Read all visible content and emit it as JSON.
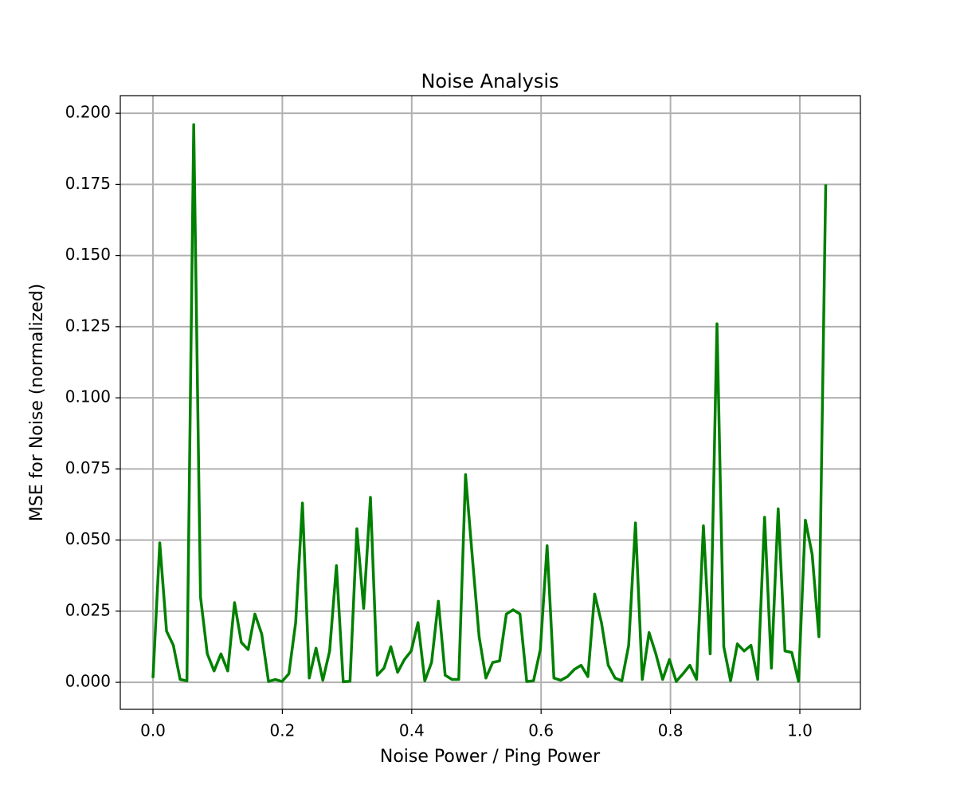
{
  "chart_data": {
    "type": "line",
    "title": "Noise Analysis",
    "x_label": "Noise Power / Ping Power",
    "y_label": "MSE for Noise (normalized)",
    "color": "#008000",
    "grid": true,
    "x": [
      0,
      0.0105,
      0.021,
      0.0315,
      0.042,
      0.0525,
      0.063,
      0.0735,
      0.084,
      0.0945,
      0.1051,
      0.1156,
      0.1261,
      0.1366,
      0.1471,
      0.1576,
      0.1681,
      0.1786,
      0.1891,
      0.1996,
      0.2101,
      0.2206,
      0.2311,
      0.2416,
      0.2521,
      0.2626,
      0.2731,
      0.2836,
      0.2941,
      0.3046,
      0.3152,
      0.3257,
      0.3362,
      0.3467,
      0.3572,
      0.3677,
      0.3782,
      0.3887,
      0.3992,
      0.4097,
      0.4202,
      0.4307,
      0.4412,
      0.4517,
      0.4622,
      0.4727,
      0.4832,
      0.4937,
      0.5042,
      0.5147,
      0.5253,
      0.5358,
      0.5463,
      0.5568,
      0.5673,
      0.5778,
      0.5883,
      0.5988,
      0.6093,
      0.6198,
      0.6303,
      0.6408,
      0.6513,
      0.6618,
      0.6723,
      0.6828,
      0.6933,
      0.7038,
      0.7143,
      0.7248,
      0.7354,
      0.7459,
      0.7564,
      0.7669,
      0.7774,
      0.7879,
      0.7984,
      0.8089,
      0.8194,
      0.8299,
      0.8404,
      0.8509,
      0.8614,
      0.8719,
      0.8824,
      0.8929,
      0.9034,
      0.9139,
      0.9244,
      0.9349,
      0.9455,
      0.956,
      0.9665,
      0.977,
      0.9875,
      0.998,
      1.0085,
      1.019,
      1.0295,
      1.04
    ],
    "values": [
      0.0015,
      0.049,
      0.018,
      0.013,
      0.001,
      0.0005,
      0.196,
      0.03,
      0.01,
      0.004,
      0.01,
      0.004,
      0.028,
      0.014,
      0.0115,
      0.024,
      0.017,
      0.0003,
      0.001,
      0.0003,
      0.003,
      0.021,
      0.063,
      0.0015,
      0.012,
      0.0007,
      0.011,
      0.041,
      0.0002,
      0.0004,
      0.054,
      0.026,
      0.065,
      0.0025,
      0.005,
      0.0125,
      0.0035,
      0.008,
      0.011,
      0.021,
      0.0005,
      0.007,
      0.0285,
      0.0025,
      0.001,
      0.001,
      0.073,
      0.044,
      0.016,
      0.0015,
      0.007,
      0.0075,
      0.024,
      0.0255,
      0.024,
      0.0003,
      0.0005,
      0.0115,
      0.048,
      0.0015,
      0.0007,
      0.002,
      0.0045,
      0.006,
      0.002,
      0.031,
      0.021,
      0.006,
      0.0015,
      0.0005,
      0.013,
      0.056,
      0.001,
      0.0175,
      0.01,
      0.001,
      0.008,
      0.0003,
      0.003,
      0.006,
      0.001,
      0.055,
      0.01,
      0.126,
      0.0125,
      0.0005,
      0.0135,
      0.011,
      0.013,
      0.001,
      0.058,
      0.005,
      0.061,
      0.011,
      0.0105,
      0.0003,
      0.057,
      0.045,
      0.016,
      0.175
    ],
    "xlim": [
      -0.0505,
      1.0936
    ],
    "ylim": [
      -0.0095,
      0.2062
    ],
    "xticks": [
      {
        "value": 0,
        "label": "0.0"
      },
      {
        "value": 0.2,
        "label": "0.2"
      },
      {
        "value": 0.4,
        "label": "0.4"
      },
      {
        "value": 0.6,
        "label": "0.6"
      },
      {
        "value": 0.8,
        "label": "0.8"
      },
      {
        "value": 1.0,
        "label": "1.0"
      }
    ],
    "yticks": [
      {
        "value": 0,
        "label": "0.000"
      },
      {
        "value": 0.025,
        "label": "0.025"
      },
      {
        "value": 0.05,
        "label": "0.050"
      },
      {
        "value": 0.075,
        "label": "0.075"
      },
      {
        "value": 0.1,
        "label": "0.100"
      },
      {
        "value": 0.125,
        "label": "0.125"
      },
      {
        "value": 0.15,
        "label": "0.150"
      },
      {
        "value": 0.175,
        "label": "0.175"
      },
      {
        "value": 0.2,
        "label": "0.200"
      }
    ]
  }
}
